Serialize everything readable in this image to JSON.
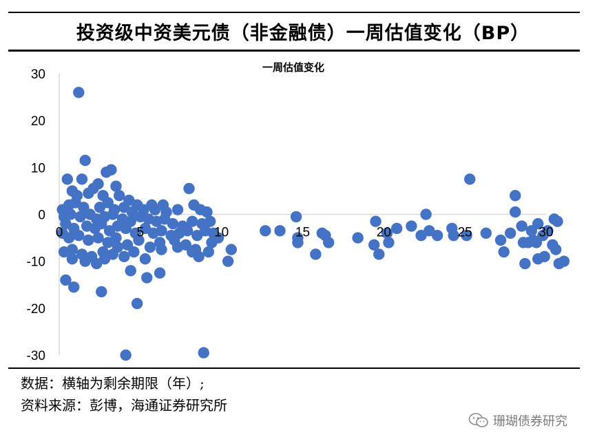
{
  "page_title": "投资级中资美元债（非金融债）一周估值变化（BP）",
  "notes": {
    "line1": "数据：横轴为剩余期限（年）;",
    "line2": "资料来源：彭博，海通证券研究所"
  },
  "watermark": "珊瑚债券研究",
  "colors": {
    "point": "#4472c4",
    "axis": "#d9d9d9"
  },
  "chart_data": {
    "type": "scatter",
    "title": "一周估值变化",
    "xlabel": "",
    "ylabel": "",
    "xlim": [
      0,
      30
    ],
    "ylim": [
      -30,
      30
    ],
    "x_ticks": [
      0,
      5,
      10,
      15,
      20,
      25,
      30
    ],
    "y_ticks": [
      30,
      20,
      10,
      0,
      -10,
      -20,
      -30
    ],
    "grid": false,
    "legend": "none",
    "series": [
      {
        "points": [
          [
            1.2,
            26
          ],
          [
            1.6,
            11.5
          ],
          [
            2.9,
            9
          ],
          [
            3.2,
            9.5
          ],
          [
            0.5,
            7.5
          ],
          [
            1.4,
            7.5
          ],
          [
            2.4,
            6.5
          ],
          [
            3.5,
            6
          ],
          [
            0.8,
            5
          ],
          [
            1.1,
            4
          ],
          [
            1.8,
            4.5
          ],
          [
            2.1,
            5.5
          ],
          [
            2.7,
            4
          ],
          [
            3.7,
            4
          ],
          [
            4.3,
            3
          ],
          [
            4.8,
            2
          ],
          [
            5.7,
            2
          ],
          [
            6.4,
            2
          ],
          [
            8,
            5.5
          ],
          [
            8.3,
            2
          ],
          [
            0.2,
            1
          ],
          [
            0.6,
            2
          ],
          [
            1,
            2.5
          ],
          [
            1.5,
            1.5
          ],
          [
            2.5,
            1.5
          ],
          [
            3,
            2.5
          ],
          [
            3.4,
            1
          ],
          [
            4,
            1.5
          ],
          [
            4.5,
            0.5
          ],
          [
            5.2,
            1
          ],
          [
            5.9,
            1
          ],
          [
            6.6,
            0.5
          ],
          [
            7.3,
            1
          ],
          [
            8.7,
            1
          ],
          [
            9.1,
            0.5
          ],
          [
            0.3,
            -0.5
          ],
          [
            0.7,
            0
          ],
          [
            1.3,
            -0.5
          ],
          [
            1.9,
            0
          ],
          [
            2.3,
            -1
          ],
          [
            2.8,
            -0.5
          ],
          [
            3.3,
            0
          ],
          [
            3.9,
            -1
          ],
          [
            4.4,
            -1.5
          ],
          [
            5,
            -0.5
          ],
          [
            5.5,
            -1
          ],
          [
            6,
            -1.5
          ],
          [
            6.5,
            -1
          ],
          [
            7,
            -2
          ],
          [
            7.6,
            -2.5
          ],
          [
            8.2,
            -1.5
          ],
          [
            8.8,
            -2
          ],
          [
            9.3,
            -1.5
          ],
          [
            0.4,
            -2
          ],
          [
            0.9,
            -3
          ],
          [
            1.7,
            -2.5
          ],
          [
            2.2,
            -3
          ],
          [
            2.6,
            -2
          ],
          [
            3.1,
            -3.5
          ],
          [
            3.6,
            -2.5
          ],
          [
            4.1,
            -3
          ],
          [
            4.7,
            -4
          ],
          [
            5.3,
            -3
          ],
          [
            5.8,
            -4
          ],
          [
            6.3,
            -3.5
          ],
          [
            6.9,
            -4.5
          ],
          [
            7.4,
            -4
          ],
          [
            7.9,
            -3.5
          ],
          [
            8.5,
            -4.5
          ],
          [
            9,
            -3.5
          ],
          [
            9.5,
            -4
          ],
          [
            0.2,
            -4
          ],
          [
            0.6,
            -5
          ],
          [
            1.2,
            -4.5
          ],
          [
            1.8,
            -5.5
          ],
          [
            2.4,
            -5
          ],
          [
            3,
            -6
          ],
          [
            3.5,
            -5
          ],
          [
            4.2,
            -6.5
          ],
          [
            4.9,
            -5.5
          ],
          [
            5.6,
            -7
          ],
          [
            6.2,
            -6
          ],
          [
            7.1,
            -5.5
          ],
          [
            7.8,
            -6.5
          ],
          [
            8.4,
            -7.5
          ],
          [
            9.4,
            -6
          ],
          [
            9.8,
            -5
          ],
          [
            0.3,
            -8
          ],
          [
            0.8,
            -7.5
          ],
          [
            1.4,
            -8.5
          ],
          [
            2,
            -9
          ],
          [
            2.7,
            -8
          ],
          [
            3.3,
            -8.5
          ],
          [
            4,
            -9
          ],
          [
            4.6,
            -8
          ],
          [
            5.3,
            -9.5
          ],
          [
            6.3,
            -7.5
          ],
          [
            7.3,
            -7
          ],
          [
            8.2,
            -8
          ],
          [
            8.6,
            -9
          ],
          [
            9.2,
            -8
          ],
          [
            10.6,
            -7.5
          ],
          [
            10.4,
            -10
          ],
          [
            0.8,
            -9.5
          ],
          [
            1.6,
            -10
          ],
          [
            2.3,
            -10.5
          ],
          [
            2.8,
            -9.5
          ],
          [
            3.6,
            -7
          ],
          [
            4.4,
            -12
          ],
          [
            6.2,
            -12.5
          ],
          [
            5.4,
            -13.5
          ],
          [
            0.4,
            -14
          ],
          [
            0.9,
            -15.5
          ],
          [
            2.6,
            -16.5
          ],
          [
            4.8,
            -19
          ],
          [
            4.1,
            -30
          ],
          [
            8.9,
            -29.5
          ],
          [
            12.7,
            -3.5
          ],
          [
            13.6,
            -3.5
          ],
          [
            14.6,
            -0.5
          ],
          [
            14.7,
            -5
          ],
          [
            14.7,
            -6
          ],
          [
            15.8,
            -8.5
          ],
          [
            16.2,
            -4
          ],
          [
            16.4,
            -4.5
          ],
          [
            16.6,
            -6
          ],
          [
            18.4,
            -5
          ],
          [
            19.4,
            -6.5
          ],
          [
            19.5,
            -1.5
          ],
          [
            19.7,
            -8.5
          ],
          [
            20.2,
            -4
          ],
          [
            20.3,
            -6
          ],
          [
            20.8,
            -3
          ],
          [
            21.7,
            -2.5
          ],
          [
            22.3,
            -4.5
          ],
          [
            22.6,
            0
          ],
          [
            22.8,
            -3.5
          ],
          [
            23.3,
            -4.5
          ],
          [
            24.2,
            -3
          ],
          [
            24.3,
            -4.5
          ],
          [
            25.1,
            -4.5
          ],
          [
            25.3,
            7.5
          ],
          [
            26.3,
            -4
          ],
          [
            27.2,
            -5.5
          ],
          [
            27.4,
            -8
          ],
          [
            27.8,
            -4
          ],
          [
            28.1,
            4
          ],
          [
            28.1,
            0.5
          ],
          [
            28.5,
            -2.5
          ],
          [
            28.6,
            -6
          ],
          [
            28.7,
            -10.5
          ],
          [
            28.9,
            -6
          ],
          [
            29.1,
            -3.5
          ],
          [
            29.2,
            -5.5
          ],
          [
            29.4,
            -6
          ],
          [
            29.5,
            -2
          ],
          [
            29.5,
            -9.5
          ],
          [
            29.8,
            -4.5
          ],
          [
            29.9,
            -9
          ],
          [
            30.1,
            -3.5
          ],
          [
            30.4,
            -6.5
          ],
          [
            30.5,
            -1
          ],
          [
            30.6,
            -7.5
          ],
          [
            30.7,
            -1.5
          ],
          [
            30.8,
            -10.5
          ],
          [
            31.1,
            -10
          ]
        ]
      }
    ]
  }
}
